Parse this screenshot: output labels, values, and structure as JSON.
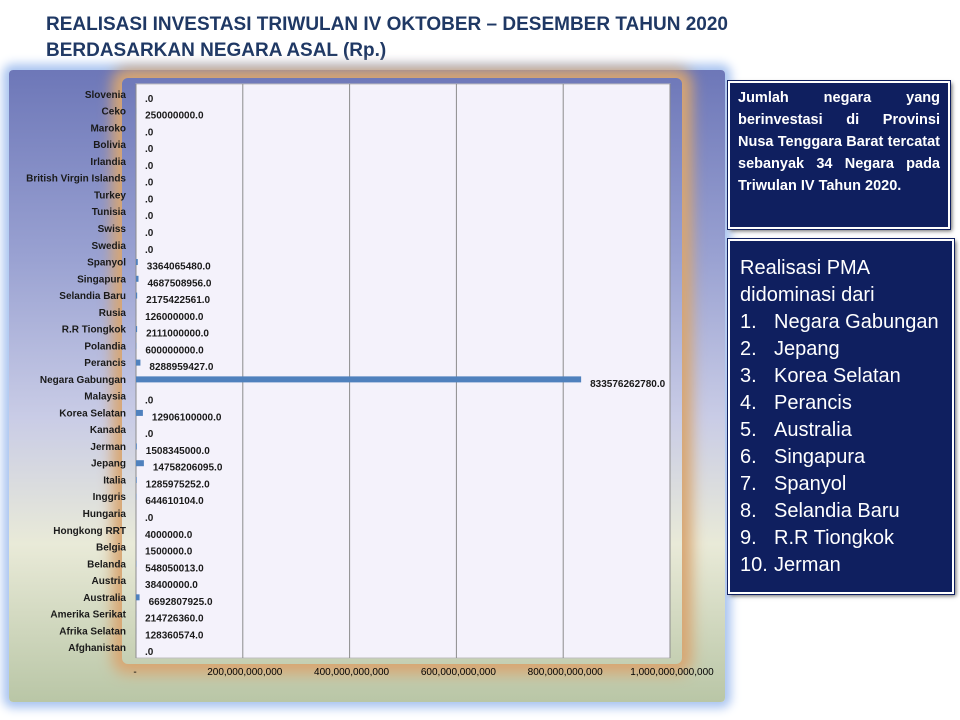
{
  "title_line1": "REALISASI INVESTASI TRIWULAN IV OKTOBER – DESEMBER TAHUN 2020",
  "title_line2": "BERDASARKAN NEGARA ASAL (Rp.)",
  "info_box": "Jumlah negara yang berinvestasi di Provinsi Nusa Tenggara Barat tercatat sebanyak 34 Negara pada Triwulan IV Tahun 2020.",
  "pma_box": {
    "heading": "Realisasi PMA didominasi dari",
    "items": [
      {
        "num": "1.",
        "label": "Negara Gabungan"
      },
      {
        "num": "2.",
        "label": "Jepang"
      },
      {
        "num": "3.",
        "label": "Korea Selatan"
      },
      {
        "num": "4.",
        "label": "Perancis"
      },
      {
        "num": "5.",
        "label": "Australia"
      },
      {
        "num": "6.",
        "label": "Singapura"
      },
      {
        "num": "7.",
        "label": "Spanyol"
      },
      {
        "num": "8.",
        "label": "Selandia Baru"
      },
      {
        "num": "9.",
        "label": "R.R Tiongkok"
      },
      {
        "num": "10.",
        "label": "Jerman"
      }
    ]
  },
  "chart_data": {
    "type": "bar",
    "orientation": "horizontal",
    "bar_color": "#4f81bd",
    "xlim": [
      0,
      1000000000000
    ],
    "x_ticks": [
      "-",
      "200,000,000,000",
      "400,000,000,000",
      "600,000,000,000",
      "800,000,000,000",
      "1,000,000,000,000"
    ],
    "grid": "vertical",
    "categories": [
      "Slovenia",
      "Ceko",
      "Maroko",
      "Bolivia",
      "Irlandia",
      "British Virgin Islands",
      "Turkey",
      "Tunisia",
      "Swiss",
      "Swedia",
      "Spanyol",
      "Singapura",
      "Selandia Baru",
      "Rusia",
      "R.R Tiongkok",
      "Polandia",
      "Perancis",
      "Negara Gabungan",
      "Malaysia",
      "Korea Selatan",
      "Kanada",
      "Jerman",
      "Jepang",
      "Italia",
      "Inggris",
      "Hungaria",
      "Hongkong RRT",
      "Belgia",
      "Belanda",
      "Austria",
      "Australia",
      "Amerika Serikat",
      "Afrika Selatan",
      "Afghanistan"
    ],
    "values": [
      0,
      250000000,
      0,
      0,
      0,
      0,
      0,
      0,
      0,
      0,
      3364065480,
      4687508956,
      2175422561,
      126000000,
      2111000000,
      600000000,
      8288959427,
      833576262780,
      0,
      12906100000,
      0,
      1508345000,
      14758206095,
      1285975252,
      644610104,
      0,
      4000000,
      1500000,
      548050013,
      38400000,
      6692807925,
      214726360,
      128360574,
      0
    ],
    "data_labels": [
      ".0",
      "250000000.0",
      ".0",
      ".0",
      ".0",
      ".0",
      ".0",
      ".0",
      ".0",
      ".0",
      "3364065480.0",
      "4687508956.0",
      "2175422561.0",
      "126000000.0",
      "2111000000.0",
      "600000000.0",
      "8288959427.0",
      "833576262780.0",
      ".0",
      "12906100000.0",
      ".0",
      "1508345000.0",
      "14758206095.0",
      "1285975252.0",
      "644610104.0",
      ".0",
      "4000000.0",
      "1500000.0",
      "548050013.0",
      "38400000.0",
      "6692807925.0",
      "214726360.0",
      "128360574.0",
      ".0"
    ]
  }
}
